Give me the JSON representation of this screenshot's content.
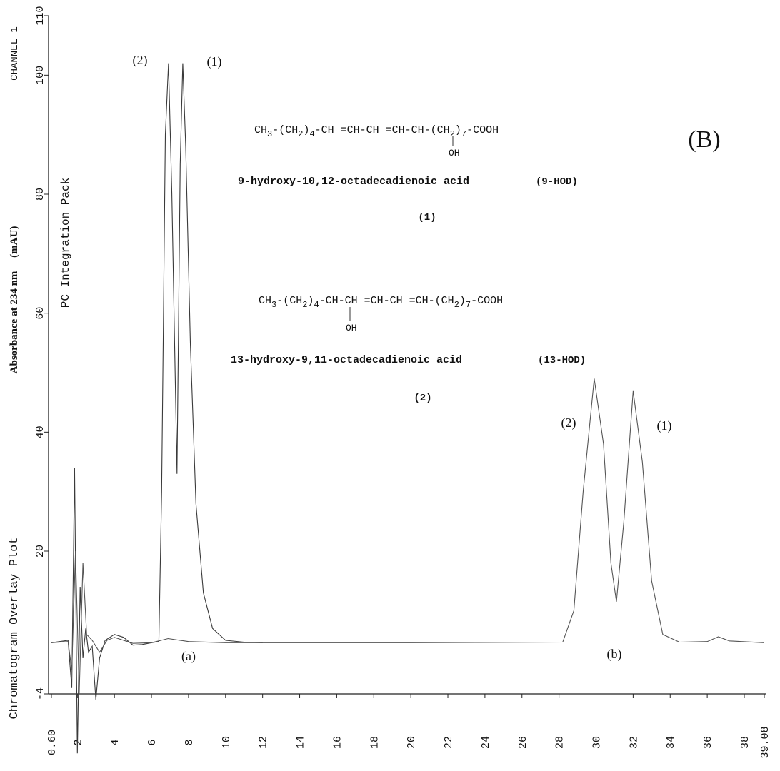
{
  "chart_data": {
    "type": "line",
    "title": "Chromatogram Overlay Plot",
    "subtitle": "PC Integration Pack",
    "channel": "CHANNEL 1",
    "ylabel": "Absorbance at 234 nm     (mAU)",
    "xlim": [
      0.6,
      39.08
    ],
    "ylim": [
      -4,
      110
    ],
    "xticks": [
      {
        "value": 0.6,
        "label": "0.60"
      },
      2,
      4,
      6,
      8,
      10,
      12,
      14,
      16,
      18,
      20,
      22,
      24,
      26,
      28,
      30,
      32,
      34,
      36,
      38,
      {
        "value": 39.08,
        "label": "39.08"
      }
    ],
    "yticks": [
      -4,
      20,
      40,
      60,
      80,
      100,
      110
    ],
    "grid": false,
    "series": [
      {
        "name": "(a)",
        "color": "#3a3a3a",
        "x": [
          0.6,
          1.5,
          1.7,
          1.85,
          2.0,
          2.15,
          2.3,
          2.45,
          2.6,
          2.8,
          3.0,
          3.2,
          3.5,
          4.0,
          4.5,
          5.0,
          5.5,
          6.0,
          6.4,
          6.55,
          6.75,
          6.92,
          7.1,
          7.38,
          7.55,
          7.69,
          7.85,
          8.1,
          8.4,
          8.8,
          9.3,
          10,
          11,
          12
        ],
        "values": [
          4.6,
          5,
          -3,
          34,
          -14,
          14,
          2,
          7,
          3,
          4,
          -5,
          2,
          5,
          6,
          5.5,
          4.2,
          4.3,
          4.6,
          4.8,
          30,
          90,
          102,
          80,
          33,
          85,
          102,
          88,
          55,
          28,
          13,
          7,
          5,
          4.7,
          4.6
        ]
      },
      {
        "name": "(b)",
        "color": "#555555",
        "x": [
          0.6,
          1.5,
          1.7,
          1.9,
          2.1,
          2.3,
          2.5,
          2.8,
          3.2,
          3.6,
          4.0,
          5.0,
          6.0,
          6.9,
          8.0,
          10,
          20,
          28.2,
          28.8,
          29.3,
          29.9,
          30.4,
          30.8,
          31.1,
          31.5,
          32.0,
          32.5,
          33.0,
          33.6,
          34.5,
          36.0,
          36.6,
          37.2,
          39.08
        ],
        "values": [
          4.6,
          4.8,
          0,
          20,
          -4,
          18,
          6,
          5,
          3,
          5,
          5.5,
          4.5,
          4.6,
          5.3,
          4.8,
          4.6,
          4.6,
          4.7,
          10,
          30,
          49,
          38,
          18,
          11.5,
          25,
          46.9,
          35,
          15,
          6,
          4.7,
          4.8,
          5.6,
          4.9,
          4.6
        ]
      }
    ],
    "annotations": [
      "(B)",
      "(2)",
      "(1)",
      "(2)",
      "(1)"
    ],
    "compounds": [
      {
        "formula": [
          "CH",
          "3",
          "-(CH",
          "2",
          ")",
          "4",
          "-CH =CH-CH =CH-CH-(CH",
          "2",
          ")",
          "7",
          "-COOH"
        ],
        "substituent": "OH",
        "name": "9-hydroxy-10,12-octadecadienoic acid",
        "abbreviation": "(9-HOD)",
        "number": "(1)"
      },
      {
        "formula": [
          "CH",
          "3",
          "-(CH",
          "2",
          ")",
          "4",
          "-CH-CH =CH-CH =CH-(CH",
          "2",
          ")",
          "7",
          "-COOH"
        ],
        "substituent": "OH",
        "name": "13-hydroxy-9,11-octadecadienoic acid",
        "abbreviation": "(13-HOD)",
        "number": "(2)"
      }
    ]
  }
}
